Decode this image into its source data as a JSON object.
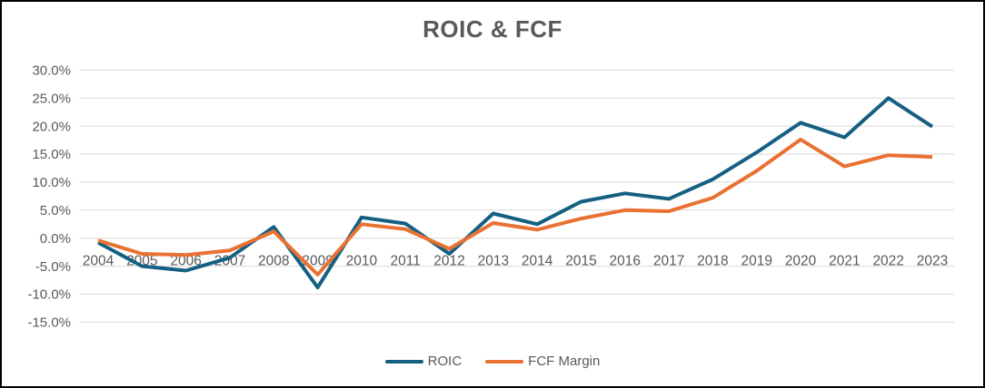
{
  "chart_data": {
    "type": "line",
    "title": "ROIC & FCF",
    "categories": [
      "2004",
      "2005",
      "2006",
      "2007",
      "2008",
      "2009",
      "2010",
      "2011",
      "2012",
      "2013",
      "2014",
      "2015",
      "2016",
      "2017",
      "2018",
      "2019",
      "2020",
      "2021",
      "2022",
      "2023"
    ],
    "series": [
      {
        "name": "ROIC",
        "color": "#156082",
        "values": [
          -0.8,
          -5.0,
          -5.8,
          -3.5,
          2.0,
          -8.8,
          3.7,
          2.6,
          -2.8,
          4.4,
          2.5,
          6.5,
          8.0,
          7.0,
          10.5,
          15.3,
          20.6,
          18.0,
          25.0,
          19.9
        ]
      },
      {
        "name": "FCF Margin",
        "color": "#E97132",
        "values": [
          -0.4,
          -2.8,
          -3.0,
          -2.2,
          1.2,
          -6.5,
          2.5,
          1.6,
          -1.9,
          2.7,
          1.5,
          3.5,
          5.0,
          4.8,
          7.2,
          12.0,
          17.6,
          12.8,
          14.8,
          14.5
        ]
      }
    ],
    "xlabel": "",
    "ylabel": "",
    "ylim": [
      -15,
      30
    ],
    "y_ticks": [
      {
        "value": 30,
        "label": "30.0%"
      },
      {
        "value": 25,
        "label": "25.0%"
      },
      {
        "value": 20,
        "label": "20.0%"
      },
      {
        "value": 15,
        "label": "15.0%"
      },
      {
        "value": 10,
        "label": "10.0%"
      },
      {
        "value": 5,
        "label": "5.0%"
      },
      {
        "value": 0,
        "label": "0.0%"
      },
      {
        "value": -5,
        "label": "-5.0%"
      },
      {
        "value": -10,
        "label": "-10.0%"
      },
      {
        "value": -15,
        "label": "-15.0%"
      }
    ],
    "grid": true,
    "gridline_color": "#D9D9D9",
    "axis_text_color": "#595959",
    "title_color": "#595959",
    "legend_position": "bottom",
    "line_width": 4
  }
}
